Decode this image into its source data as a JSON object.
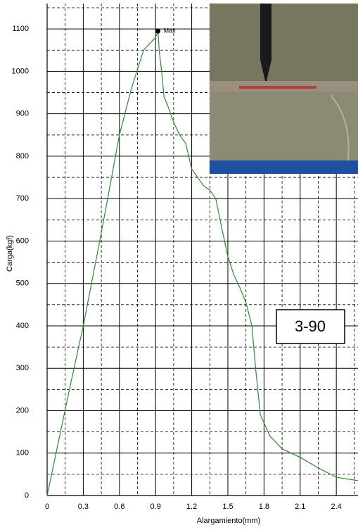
{
  "chart_data": {
    "type": "line",
    "x_label": "Alargamiento(mm)",
    "y_label": "Carga(kgf)",
    "x": [
      0,
      0.1,
      0.2,
      0.3,
      0.45,
      0.6,
      0.7,
      0.8,
      0.85,
      0.9,
      0.92,
      0.93,
      0.95,
      0.97,
      1.0,
      1.05,
      1.1,
      1.15,
      1.2,
      1.25,
      1.3,
      1.35,
      1.4,
      1.45,
      1.5,
      1.55,
      1.6,
      1.65,
      1.7,
      1.73,
      1.77,
      1.85,
      1.95,
      2.1,
      2.25,
      2.4,
      2.58
    ],
    "values": [
      0,
      135,
      270,
      400,
      620,
      850,
      960,
      1050,
      1065,
      1080,
      1095,
      1050,
      1000,
      940,
      920,
      880,
      850,
      830,
      770,
      750,
      730,
      720,
      700,
      630,
      563,
      520,
      490,
      455,
      400,
      300,
      190,
      140,
      110,
      90,
      65,
      43,
      35
    ],
    "color": "#2e8b2e",
    "xlim": [
      0,
      2.58
    ],
    "ylim": [
      0,
      1160
    ],
    "xticks": [
      0,
      0.3,
      0.6,
      0.9,
      1.2,
      1.5,
      1.8,
      2.1,
      2.4
    ],
    "yticks": [
      0,
      100,
      200,
      300,
      400,
      500,
      600,
      700,
      800,
      900,
      1000,
      1100
    ],
    "minor_xticks": [
      0.15,
      0.45,
      0.75,
      1.05,
      1.35,
      1.65,
      1.95,
      2.25,
      2.55
    ],
    "minor_yticks": [
      50,
      150,
      250,
      350,
      450,
      550,
      650,
      750,
      850,
      950,
      1050,
      1150
    ],
    "grid": true,
    "annotations": [
      {
        "text": "Max",
        "x": 0.92,
        "y": 1095
      }
    ],
    "label_box": "3-90"
  }
}
